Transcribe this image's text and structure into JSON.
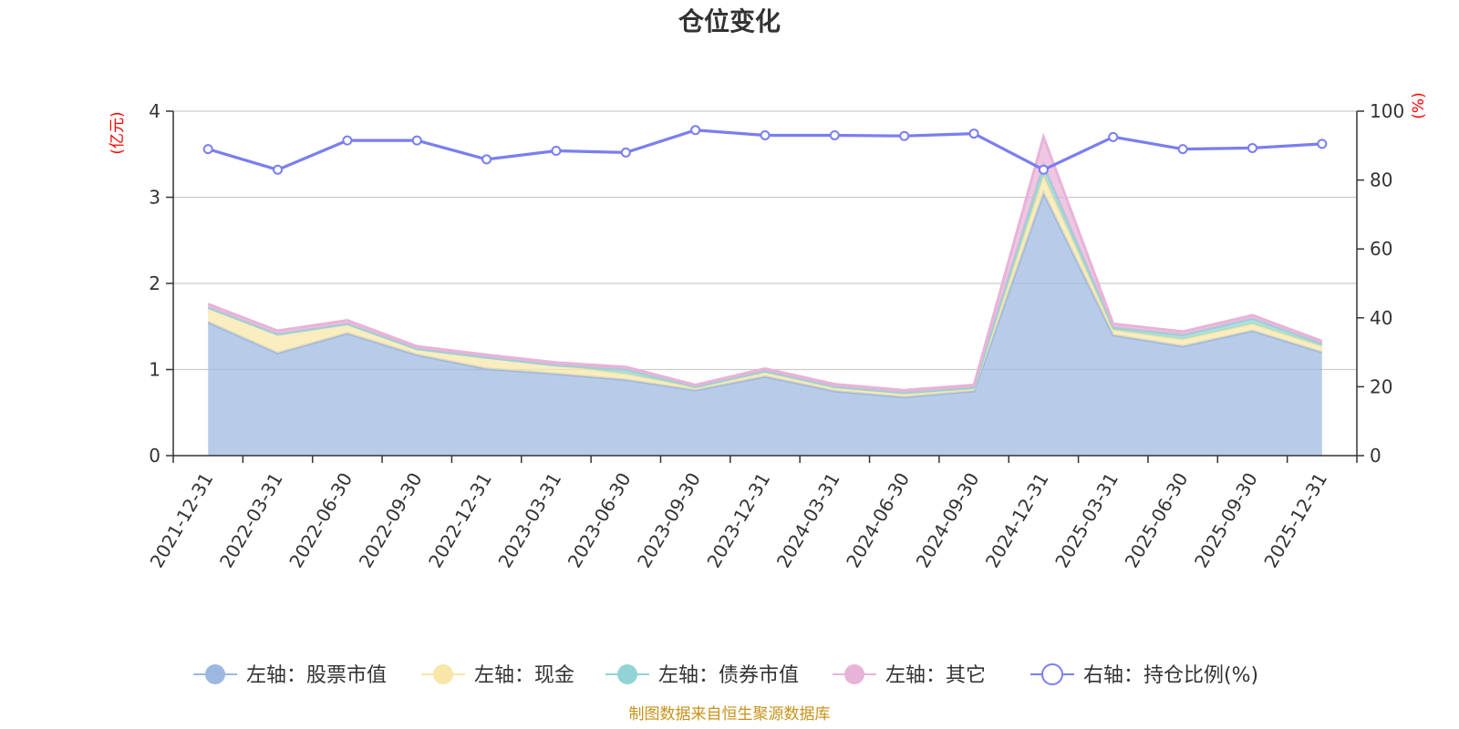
{
  "chart_data": {
    "type": "area",
    "title": "仓位变化",
    "left_unit": "(亿元)",
    "right_unit": "(%)",
    "x": [
      "2021-12-31",
      "2022-03-31",
      "2022-06-30",
      "2022-09-30",
      "2022-12-31",
      "2023-03-31",
      "2023-06-30",
      "2023-09-30",
      "2023-12-31",
      "2024-03-31",
      "2024-06-30",
      "2024-09-30",
      "2024-12-31",
      "2025-03-31",
      "2025-06-30",
      "2025-09-30",
      "2025-12-31"
    ],
    "left_ylim": [
      0,
      4
    ],
    "left_ticks": [
      0,
      1,
      2,
      3,
      4
    ],
    "right_ylim": [
      0,
      100
    ],
    "right_ticks": [
      0,
      20,
      40,
      60,
      80,
      100
    ],
    "grid": true,
    "legend_position": "bottom",
    "series": [
      {
        "name": "左轴：股票市值",
        "axis": "left",
        "kind": "stacked-area",
        "color": "#9db8e0",
        "values": [
          1.55,
          1.19,
          1.42,
          1.17,
          1.01,
          0.95,
          0.88,
          0.76,
          0.92,
          0.75,
          0.68,
          0.75,
          3.05,
          1.4,
          1.27,
          1.45,
          1.2
        ]
      },
      {
        "name": "左轴：现金",
        "axis": "left",
        "kind": "stacked-area",
        "color": "#f8e6a8",
        "values": [
          0.17,
          0.22,
          0.11,
          0.07,
          0.13,
          0.1,
          0.07,
          0.03,
          0.05,
          0.04,
          0.04,
          0.03,
          0.2,
          0.06,
          0.08,
          0.08,
          0.07
        ]
      },
      {
        "name": "左轴：债券市值",
        "axis": "left",
        "kind": "stacked-area",
        "color": "#92d4d5",
        "values": [
          0,
          0,
          0,
          0,
          0,
          0,
          0.05,
          0.01,
          0.01,
          0.01,
          0.01,
          0.01,
          0.12,
          0.03,
          0.05,
          0.06,
          0.03
        ]
      },
      {
        "name": "左轴：其它",
        "axis": "left",
        "kind": "stacked-area",
        "color": "#e8b3d8",
        "values": [
          0.04,
          0.04,
          0.04,
          0.03,
          0.03,
          0.03,
          0.03,
          0.02,
          0.03,
          0.03,
          0.03,
          0.03,
          0.33,
          0.04,
          0.04,
          0.04,
          0.03
        ]
      },
      {
        "name": "右轴：持仓比例(%)",
        "axis": "right",
        "kind": "line",
        "color": "#7a7ef0",
        "values": [
          89,
          83,
          91.5,
          91.5,
          86,
          88.5,
          88,
          94.5,
          93,
          93,
          92.8,
          93.5,
          83,
          92.5,
          89,
          89.3,
          90.5
        ]
      }
    ],
    "source_note": "制图数据来自恒生聚源数据库"
  }
}
